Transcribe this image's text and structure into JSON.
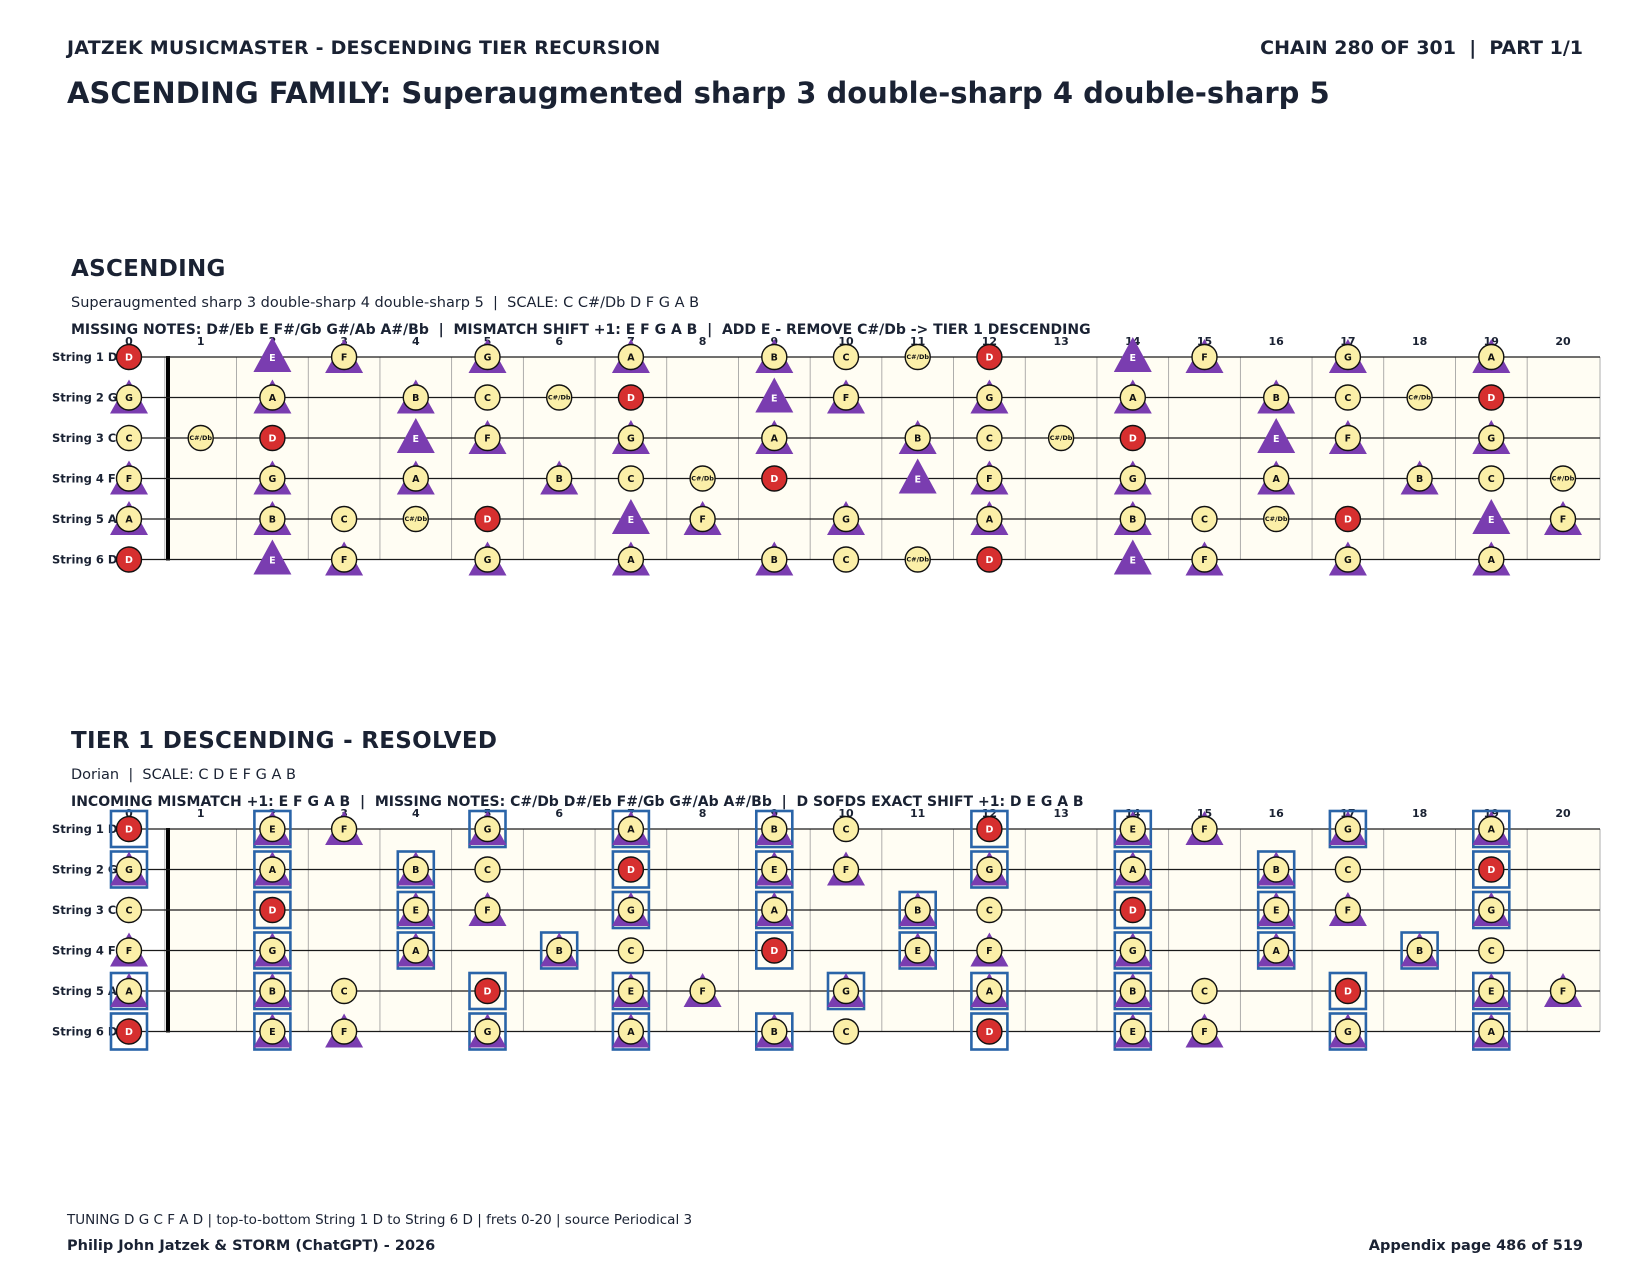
{
  "header": {
    "left": "JATZEK MUSICMASTER - DESCENDING TIER RECURSION",
    "right": "CHAIN 280 OF 301  |  PART 1/1"
  },
  "title": "ASCENDING FAMILY: Superaugmented sharp 3 double-sharp 4 double-sharp 5",
  "colors": {
    "background": "#fffdf3",
    "note_fill": "#fbefa8",
    "root_fill": "#d62f2f",
    "triangle": "#7a3db0",
    "box": "#2a64a8",
    "text": "#1a2233"
  },
  "fret_numbers": [
    "0",
    "1",
    "2",
    "3",
    "4",
    "5",
    "6",
    "7",
    "8",
    "9",
    "10",
    "11",
    "12",
    "13",
    "14",
    "15",
    "16",
    "17",
    "18",
    "19",
    "20"
  ],
  "string_labels": [
    "String 1 D",
    "String 2 G",
    "String 3 C",
    "String 4 F",
    "String 5 A",
    "String 6 D"
  ],
  "sections": [
    {
      "title": "ASCENDING",
      "subtitle": "Superaugmented sharp 3 double-sharp 4 double-sharp 5  |  SCALE: C C#/Db D F G A B",
      "info": "MISSING NOTES: D#/Eb E F#/Gb G#/Ab A#/Bb  |  MISMATCH SHIFT +1: E F G A B  |  ADD E - REMOVE C#/Db -> TIER 1 DESCENDING",
      "scale": [
        "C",
        "C#/Db",
        "D",
        "F",
        "G",
        "A",
        "B"
      ],
      "root": "D",
      "tri_small": [
        "F",
        "G",
        "A",
        "B"
      ],
      "tri_large": [
        "E"
      ],
      "boxed": []
    },
    {
      "title": "TIER 1 DESCENDING - RESOLVED",
      "subtitle": "Dorian  |  SCALE: C D E F G A B",
      "info": "INCOMING MISMATCH +1: E F G A B  |  MISSING NOTES: C#/Db D#/Eb F#/Gb G#/Ab A#/Bb  |  D SOFDS EXACT SHIFT +1: D E G A B",
      "scale": [
        "C",
        "D",
        "E",
        "F",
        "G",
        "A",
        "B"
      ],
      "root": "D",
      "tri_small": [
        "E",
        "F",
        "G",
        "A",
        "B"
      ],
      "tri_large": [],
      "boxed": [
        "D",
        "E",
        "G",
        "A",
        "B"
      ]
    }
  ],
  "footer": {
    "tuning": "TUNING D G C F A D | top-to-bottom String 1 D to String 6 D | frets 0-20 | source Periodical 3",
    "author": "Philip John Jatzek & STORM (ChatGPT) - 2026",
    "page": "Appendix page 486 of 519"
  }
}
